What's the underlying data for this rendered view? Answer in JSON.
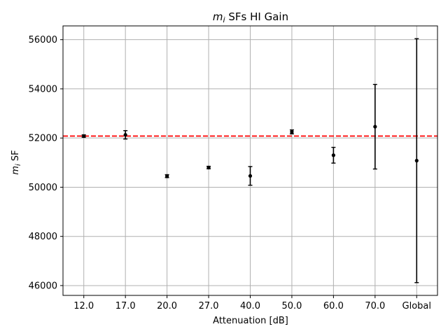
{
  "chart_data": {
    "type": "scatter",
    "title_var": "m",
    "title_sub": "i",
    "title_rest": " SFs HI Gain",
    "xlabel": "Attenuation [dB]",
    "ylabel_var": "m",
    "ylabel_sub": "i",
    "ylabel_rest": " SF",
    "categories": [
      "12.0",
      "17.0",
      "20.0",
      "27.0",
      "40.0",
      "50.0",
      "60.0",
      "70.0",
      "Global"
    ],
    "values": [
      52080,
      52130,
      50450,
      50800,
      50460,
      52250,
      51300,
      52460,
      51080
    ],
    "errors": [
      50,
      170,
      60,
      50,
      380,
      80,
      320,
      1720,
      4960
    ],
    "reference_line": {
      "value": 52080,
      "color": "#ff0000",
      "style": "dashed"
    },
    "ylim": [
      45600,
      56560
    ],
    "yticks": [
      46000,
      48000,
      50000,
      52000,
      54000,
      56000
    ],
    "ytick_labels": [
      "46000",
      "48000",
      "50000",
      "52000",
      "54000",
      "56000"
    ],
    "grid": true,
    "marker_color": "#000000",
    "grid_color": "#b0b0b0"
  }
}
